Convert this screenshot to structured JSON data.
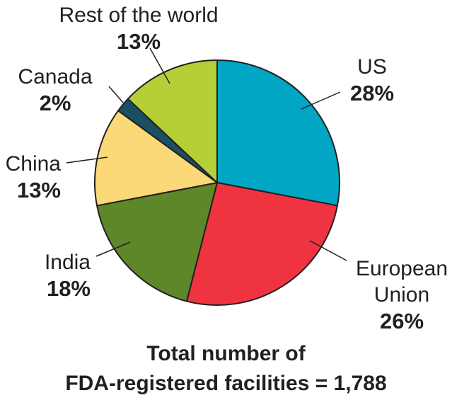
{
  "chart_data": {
    "type": "pie",
    "title": "",
    "caption_lines": [
      "Total number of",
      "FDA-registered facilities = 1,788"
    ],
    "slices": [
      {
        "label_lines": [
          "US"
        ],
        "percent_label": "28%",
        "value": 28,
        "color": "#00a6c4"
      },
      {
        "label_lines": [
          "European",
          "Union"
        ],
        "percent_label": "26%",
        "value": 26,
        "color": "#ef3340"
      },
      {
        "label_lines": [
          "India"
        ],
        "percent_label": "18%",
        "value": 18,
        "color": "#5e8729"
      },
      {
        "label_lines": [
          "China"
        ],
        "percent_label": "13%",
        "value": 13,
        "color": "#fcd978"
      },
      {
        "label_lines": [
          "Canada"
        ],
        "percent_label": "2%",
        "value": 2,
        "color": "#1b4f62"
      },
      {
        "label_lines": [
          "Rest of the world"
        ],
        "percent_label": "13%",
        "value": 13,
        "color": "#b5cf37"
      }
    ],
    "start_angle_deg": 0,
    "direction": "clockwise",
    "slice_border_color": "#231f20",
    "leader_line_color": "#231f20"
  }
}
